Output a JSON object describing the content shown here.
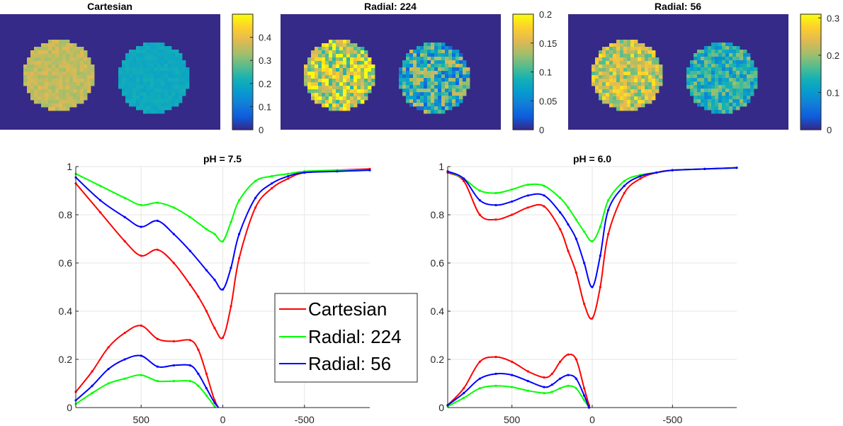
{
  "colors": {
    "background": "#ffffff",
    "map_background": "#352a87",
    "cartesian": "#ff0000",
    "radial_224": "#00ff00",
    "radial_56": "#0000ff",
    "grid": "#e6e6e6",
    "axis": "#262626"
  },
  "chart_data": [
    {
      "type": "heatmap",
      "title": "Cartesian",
      "colormap": "parula",
      "colorbar_ticks": [
        "0",
        "0.1",
        "0.2",
        "0.3",
        "0.4"
      ],
      "colorbar_range": [
        0,
        0.5
      ],
      "discs": [
        {
          "mean": 0.36,
          "noise": 0.02
        },
        {
          "mean": 0.2,
          "noise": 0.01
        }
      ]
    },
    {
      "type": "heatmap",
      "title": "Radial: 224",
      "colormap": "parula",
      "colorbar_ticks": [
        "0",
        "0.05",
        "0.1",
        "0.15",
        "0.2"
      ],
      "colorbar_range": [
        0,
        0.2
      ],
      "discs": [
        {
          "mean": 0.155,
          "noise": 0.04
        },
        {
          "mean": 0.09,
          "noise": 0.04
        }
      ]
    },
    {
      "type": "heatmap",
      "title": "Radial: 56",
      "colormap": "parula",
      "colorbar_ticks": [
        "0",
        "0.1",
        "0.2",
        "0.3"
      ],
      "colorbar_range": [
        0,
        0.31
      ],
      "discs": [
        {
          "mean": 0.23,
          "noise": 0.04
        },
        {
          "mean": 0.14,
          "noise": 0.04
        }
      ]
    },
    {
      "type": "line",
      "title": "pH = 7.5",
      "xlim": [
        900,
        -900
      ],
      "ylim": [
        0,
        1
      ],
      "xticks": [
        500,
        0,
        -500
      ],
      "xtick_labels": [
        "500",
        "0",
        "-500"
      ],
      "yticks": [
        0,
        0.2,
        0.4,
        0.6,
        0.8,
        1
      ],
      "ytick_labels": [
        "0",
        "0.2",
        "0.4",
        "0.6",
        "0.8",
        "1"
      ],
      "legend": {
        "position": "lower-right",
        "entries": [
          "Cartesian",
          "Radial: 224",
          "Radial: 56"
        ]
      },
      "series": [
        {
          "name": "Cartesian",
          "color": "#ff0000",
          "x": [
            900,
            750,
            600,
            500,
            400,
            300,
            200,
            150,
            100,
            50,
            0,
            -50,
            -100,
            -200,
            -300,
            -400,
            -500,
            -700,
            -900
          ],
          "y": [
            0.93,
            0.81,
            0.69,
            0.63,
            0.655,
            0.6,
            0.51,
            0.46,
            0.4,
            0.33,
            0.29,
            0.42,
            0.62,
            0.83,
            0.91,
            0.95,
            0.975,
            0.985,
            0.99
          ]
        },
        {
          "name": "Radial: 224",
          "color": "#00ff00",
          "x": [
            900,
            750,
            600,
            500,
            400,
            300,
            200,
            100,
            50,
            0,
            -50,
            -100,
            -200,
            -300,
            -400,
            -500,
            -700,
            -900
          ],
          "y": [
            0.97,
            0.92,
            0.87,
            0.84,
            0.85,
            0.83,
            0.79,
            0.74,
            0.72,
            0.69,
            0.77,
            0.86,
            0.94,
            0.96,
            0.97,
            0.98,
            0.985,
            0.985
          ]
        },
        {
          "name": "Radial: 56",
          "color": "#0000ff",
          "x": [
            900,
            750,
            600,
            500,
            400,
            300,
            200,
            100,
            50,
            0,
            -50,
            -100,
            -200,
            -300,
            -400,
            -500,
            -700,
            -900
          ],
          "y": [
            0.955,
            0.86,
            0.79,
            0.75,
            0.775,
            0.72,
            0.65,
            0.57,
            0.53,
            0.49,
            0.58,
            0.72,
            0.87,
            0.93,
            0.96,
            0.975,
            0.98,
            0.985
          ]
        },
        {
          "name": "Cartesian difference",
          "color": "#ff0000",
          "x": [
            900,
            800,
            700,
            600,
            500,
            400,
            300,
            200,
            150,
            100,
            50,
            0,
            -10
          ],
          "y": [
            0.065,
            0.15,
            0.25,
            0.31,
            0.34,
            0.285,
            0.275,
            0.28,
            0.24,
            0.14,
            0.03,
            -0.03,
            -0.04
          ]
        },
        {
          "name": "Radial: 224 difference",
          "color": "#00ff00",
          "x": [
            900,
            800,
            700,
            600,
            500,
            400,
            300,
            200,
            150,
            100,
            50,
            0,
            -10
          ],
          "y": [
            0.015,
            0.06,
            0.1,
            0.12,
            0.135,
            0.11,
            0.11,
            0.11,
            0.09,
            0.05,
            0.005,
            -0.03,
            -0.04
          ]
        },
        {
          "name": "Radial: 56 difference",
          "color": "#0000ff",
          "x": [
            900,
            800,
            700,
            600,
            500,
            400,
            300,
            200,
            150,
            100,
            50,
            0,
            -10
          ],
          "y": [
            0.03,
            0.09,
            0.16,
            0.2,
            0.215,
            0.17,
            0.175,
            0.175,
            0.14,
            0.08,
            0.02,
            -0.02,
            -0.04
          ]
        }
      ]
    },
    {
      "type": "line",
      "title": "pH = 6.0",
      "xlim": [
        900,
        -900
      ],
      "ylim": [
        0,
        1
      ],
      "xticks": [
        500,
        0,
        -500
      ],
      "xtick_labels": [
        "500",
        "0",
        "-500"
      ],
      "yticks": [
        0,
        0.2,
        0.4,
        0.6,
        0.8,
        1
      ],
      "ytick_labels": [
        "0",
        "0.2",
        "0.4",
        "0.6",
        "0.8",
        "1"
      ],
      "series": [
        {
          "name": "Cartesian",
          "color": "#ff0000",
          "x": [
            900,
            800,
            700,
            600,
            500,
            400,
            300,
            200,
            150,
            100,
            50,
            0,
            -50,
            -100,
            -200,
            -300,
            -400,
            -500,
            -700,
            -900
          ],
          "y": [
            0.975,
            0.94,
            0.8,
            0.78,
            0.8,
            0.83,
            0.835,
            0.74,
            0.65,
            0.56,
            0.43,
            0.37,
            0.5,
            0.72,
            0.89,
            0.95,
            0.975,
            0.985,
            0.99,
            0.995
          ]
        },
        {
          "name": "Radial: 224",
          "color": "#00ff00",
          "x": [
            900,
            800,
            700,
            600,
            500,
            400,
            300,
            200,
            150,
            100,
            50,
            0,
            -50,
            -100,
            -200,
            -300,
            -400,
            -500,
            -700,
            -900
          ],
          "y": [
            0.98,
            0.95,
            0.9,
            0.89,
            0.905,
            0.925,
            0.92,
            0.87,
            0.83,
            0.78,
            0.73,
            0.69,
            0.75,
            0.86,
            0.94,
            0.965,
            0.975,
            0.985,
            0.99,
            0.995
          ]
        },
        {
          "name": "Radial: 56",
          "color": "#0000ff",
          "x": [
            900,
            800,
            700,
            600,
            500,
            400,
            300,
            200,
            150,
            100,
            50,
            0,
            -50,
            -100,
            -200,
            -300,
            -400,
            -500,
            -700,
            -900
          ],
          "y": [
            0.98,
            0.95,
            0.86,
            0.84,
            0.855,
            0.88,
            0.88,
            0.81,
            0.76,
            0.7,
            0.6,
            0.5,
            0.63,
            0.82,
            0.92,
            0.96,
            0.975,
            0.985,
            0.99,
            0.995
          ]
        },
        {
          "name": "Cartesian difference",
          "color": "#ff0000",
          "x": [
            900,
            800,
            700,
            600,
            500,
            400,
            300,
            250,
            200,
            150,
            100,
            50,
            20,
            0
          ],
          "y": [
            0.01,
            0.08,
            0.19,
            0.21,
            0.19,
            0.15,
            0.125,
            0.14,
            0.19,
            0.22,
            0.2,
            0.08,
            0.01,
            -0.03
          ]
        },
        {
          "name": "Radial: 224 difference",
          "color": "#00ff00",
          "x": [
            900,
            800,
            700,
            600,
            500,
            400,
            300,
            250,
            200,
            150,
            100,
            50,
            20,
            0
          ],
          "y": [
            0.005,
            0.04,
            0.08,
            0.09,
            0.085,
            0.07,
            0.06,
            0.065,
            0.08,
            0.09,
            0.08,
            0.03,
            0.0,
            -0.03
          ]
        },
        {
          "name": "Radial: 56 difference",
          "color": "#0000ff",
          "x": [
            900,
            800,
            700,
            600,
            500,
            400,
            300,
            250,
            200,
            150,
            100,
            50,
            20,
            0
          ],
          "y": [
            0.01,
            0.06,
            0.12,
            0.14,
            0.135,
            0.11,
            0.085,
            0.095,
            0.12,
            0.135,
            0.12,
            0.05,
            0.0,
            -0.03
          ]
        }
      ]
    }
  ]
}
